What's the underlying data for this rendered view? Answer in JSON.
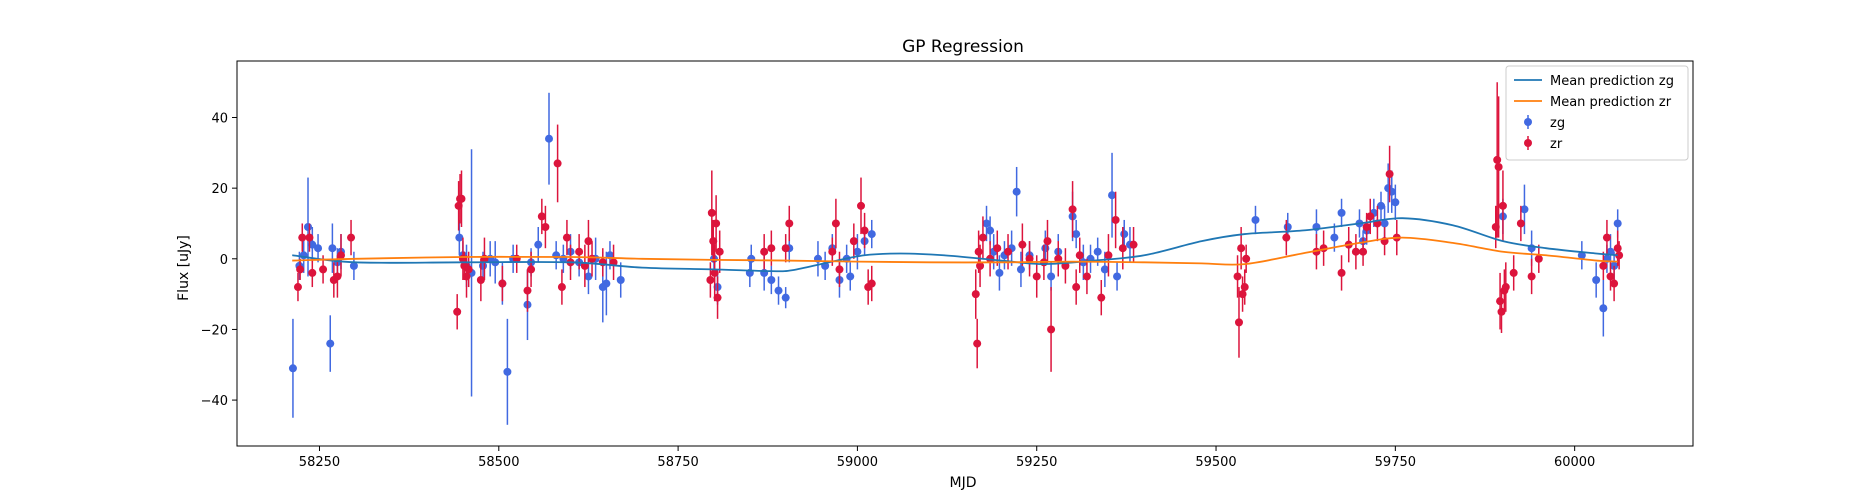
{
  "chart_data": {
    "type": "scatter",
    "title": "GP Regression",
    "xlabel": "MJD",
    "ylabel": "Flux [uJy]",
    "xlim": [
      58135,
      60165
    ],
    "ylim": [
      -53,
      56
    ],
    "xticks": [
      58250,
      58500,
      58750,
      59000,
      59250,
      59500,
      59750,
      60000
    ],
    "yticks": [
      -40,
      -20,
      0,
      20,
      40
    ],
    "grid": false,
    "legend_position": "top-right",
    "colors": {
      "mean_zg": "#1f77b4",
      "mean_zr": "#ff7f0e",
      "zg": "#4169e1",
      "zr": "#dc143c"
    },
    "legend": [
      {
        "label": "Mean prediction zg",
        "kind": "line",
        "color": "#1f77b4"
      },
      {
        "label": "Mean prediction zr",
        "kind": "line",
        "color": "#ff7f0e"
      },
      {
        "label": "zg",
        "kind": "errorbar",
        "color": "#4169e1"
      },
      {
        "label": "zr",
        "kind": "errorbar",
        "color": "#dc143c"
      }
    ],
    "lines": [
      {
        "name": "Mean prediction zg",
        "x": [
          58212,
          58300,
          58450,
          58600,
          58700,
          58800,
          58880,
          58910,
          58960,
          59010,
          59060,
          59120,
          59200,
          59260,
          59330,
          59400,
          59480,
          59540,
          59620,
          59700,
          59760,
          59830,
          59900,
          59960,
          60030,
          60060
        ],
        "y": [
          1,
          -1,
          -1,
          -1,
          -2.5,
          -3,
          -3.5,
          -3.2,
          -1,
          1,
          1.5,
          1,
          -0.5,
          -1.5,
          -0.5,
          1,
          5,
          7,
          8,
          10,
          11.5,
          9.5,
          5,
          3,
          1.5,
          1
        ]
      },
      {
        "name": "Mean prediction zr",
        "x": [
          58212,
          58300,
          58450,
          58600,
          58700,
          58800,
          58900,
          59000,
          59100,
          59200,
          59300,
          59400,
          59480,
          59540,
          59620,
          59700,
          59760,
          59830,
          59900,
          59960,
          60030,
          60060
        ],
        "y": [
          -0.5,
          0,
          0.5,
          0.5,
          0,
          -0.3,
          -0.5,
          -0.8,
          -1,
          -1,
          -0.8,
          -1,
          -1.3,
          -1.5,
          1.5,
          4.5,
          6,
          4.5,
          2,
          1,
          -0.5,
          -0.8
        ]
      }
    ],
    "series": [
      {
        "name": "zg",
        "points": [
          [
            58213,
            -31,
            14
          ],
          [
            58222,
            -2,
            4
          ],
          [
            58228,
            1,
            5
          ],
          [
            58234,
            9,
            14
          ],
          [
            58240,
            4,
            5
          ],
          [
            58248,
            3,
            4
          ],
          [
            58265,
            -24,
            8
          ],
          [
            58268,
            3,
            7
          ],
          [
            58275,
            -1,
            4
          ],
          [
            58280,
            2,
            5
          ],
          [
            58298,
            -2,
            4
          ],
          [
            58445,
            6,
            5
          ],
          [
            58450,
            1,
            4
          ],
          [
            58455,
            -2,
            6
          ],
          [
            58462,
            -4,
            35
          ],
          [
            58478,
            -2,
            4
          ],
          [
            58488,
            0,
            5
          ],
          [
            58495,
            -1,
            6
          ],
          [
            58505,
            -7,
            6
          ],
          [
            58512,
            -32,
            15
          ],
          [
            58520,
            0,
            4
          ],
          [
            58540,
            -13,
            10
          ],
          [
            58545,
            -1,
            4
          ],
          [
            58555,
            4,
            5
          ],
          [
            58570,
            34,
            13
          ],
          [
            58580,
            1,
            4
          ],
          [
            58590,
            0,
            4
          ],
          [
            58600,
            2,
            5
          ],
          [
            58612,
            -1,
            4
          ],
          [
            58625,
            -5,
            5
          ],
          [
            58635,
            0,
            6
          ],
          [
            58645,
            -8,
            10
          ],
          [
            58650,
            -7,
            9
          ],
          [
            58655,
            1,
            4
          ],
          [
            58670,
            -6,
            5
          ],
          [
            58800,
            0,
            4
          ],
          [
            58805,
            -8,
            5
          ],
          [
            58850,
            -4,
            4
          ],
          [
            58852,
            0,
            4
          ],
          [
            58870,
            -4,
            5
          ],
          [
            58880,
            -6,
            4
          ],
          [
            58890,
            -9,
            4
          ],
          [
            58900,
            -11,
            3
          ],
          [
            58905,
            3,
            4
          ],
          [
            58945,
            0,
            5
          ],
          [
            58955,
            -2,
            4
          ],
          [
            58965,
            3,
            4
          ],
          [
            58975,
            -6,
            5
          ],
          [
            58985,
            0,
            4
          ],
          [
            58990,
            -5,
            4
          ],
          [
            59000,
            2,
            5
          ],
          [
            59010,
            5,
            4
          ],
          [
            59020,
            7,
            4
          ],
          [
            59180,
            10,
            5
          ],
          [
            59185,
            8,
            4
          ],
          [
            59190,
            2,
            5
          ],
          [
            59198,
            -4,
            5
          ],
          [
            59205,
            1,
            4
          ],
          [
            59215,
            3,
            5
          ],
          [
            59222,
            19,
            7
          ],
          [
            59228,
            -3,
            5
          ],
          [
            59240,
            1,
            4
          ],
          [
            59262,
            3,
            5
          ],
          [
            59270,
            -5,
            4
          ],
          [
            59280,
            2,
            5
          ],
          [
            59300,
            12,
            7
          ],
          [
            59305,
            7,
            4
          ],
          [
            59315,
            -1,
            5
          ],
          [
            59325,
            0,
            4
          ],
          [
            59335,
            2,
            4
          ],
          [
            59345,
            -3,
            5
          ],
          [
            59355,
            18,
            12
          ],
          [
            59362,
            -5,
            4
          ],
          [
            59372,
            7,
            4
          ],
          [
            59380,
            4,
            5
          ],
          [
            59555,
            11,
            4
          ],
          [
            59600,
            9,
            4
          ],
          [
            59640,
            9,
            5
          ],
          [
            59665,
            6,
            4
          ],
          [
            59675,
            13,
            4
          ],
          [
            59700,
            10,
            4
          ],
          [
            59705,
            5,
            3
          ],
          [
            59710,
            8,
            4
          ],
          [
            59720,
            13,
            4
          ],
          [
            59730,
            15,
            4
          ],
          [
            59735,
            10,
            5
          ],
          [
            59740,
            20,
            7
          ],
          [
            59745,
            19,
            6
          ],
          [
            59750,
            16,
            5
          ],
          [
            59900,
            12,
            5
          ],
          [
            59930,
            14,
            7
          ],
          [
            59940,
            3,
            5
          ],
          [
            60010,
            1,
            4
          ],
          [
            60030,
            -6,
            5
          ],
          [
            60040,
            -14,
            8
          ],
          [
            60045,
            0,
            4
          ],
          [
            60050,
            2,
            5
          ],
          [
            60055,
            -2,
            4
          ],
          [
            60060,
            10,
            4
          ]
        ]
      },
      {
        "name": "zr",
        "points": [
          [
            58220,
            -8,
            4
          ],
          [
            58223,
            -3,
            3
          ],
          [
            58226,
            6,
            4
          ],
          [
            58236,
            6,
            4
          ],
          [
            58240,
            -4,
            4
          ],
          [
            58255,
            -3,
            4
          ],
          [
            58270,
            -6,
            5
          ],
          [
            58275,
            -5,
            6
          ],
          [
            58280,
            1,
            6
          ],
          [
            58294,
            6,
            5
          ],
          [
            58442,
            -15,
            5
          ],
          [
            58444,
            15,
            7
          ],
          [
            58446,
            17,
            7
          ],
          [
            58448,
            17,
            8
          ],
          [
            58450,
            0,
            6
          ],
          [
            58452,
            -2,
            4
          ],
          [
            58455,
            -5,
            6
          ],
          [
            58458,
            -3,
            5
          ],
          [
            58475,
            -6,
            6
          ],
          [
            58480,
            0,
            6
          ],
          [
            58505,
            -7,
            5
          ],
          [
            58525,
            0,
            4
          ],
          [
            58540,
            -9,
            6
          ],
          [
            58545,
            -3,
            5
          ],
          [
            58560,
            12,
            5
          ],
          [
            58565,
            9,
            6
          ],
          [
            58582,
            27,
            11
          ],
          [
            58588,
            -8,
            5
          ],
          [
            58595,
            6,
            5
          ],
          [
            58600,
            -1,
            5
          ],
          [
            58612,
            2,
            5
          ],
          [
            58620,
            -2,
            6
          ],
          [
            58625,
            5,
            6
          ],
          [
            58630,
            0,
            5
          ],
          [
            58645,
            -1,
            4
          ],
          [
            58660,
            -1,
            5
          ],
          [
            58795,
            -6,
            5
          ],
          [
            58797,
            13,
            12
          ],
          [
            58799,
            5,
            6
          ],
          [
            58801,
            -4,
            8
          ],
          [
            58803,
            10,
            8
          ],
          [
            58805,
            -11,
            6
          ],
          [
            58808,
            2,
            6
          ],
          [
            58870,
            2,
            5
          ],
          [
            58880,
            3,
            5
          ],
          [
            58900,
            3,
            4
          ],
          [
            58905,
            10,
            5
          ],
          [
            58965,
            2,
            4
          ],
          [
            58970,
            10,
            7
          ],
          [
            58975,
            -3,
            5
          ],
          [
            58995,
            5,
            5
          ],
          [
            59005,
            15,
            8
          ],
          [
            59010,
            8,
            5
          ],
          [
            59015,
            -8,
            5
          ],
          [
            59020,
            -7,
            5
          ],
          [
            59165,
            -10,
            7
          ],
          [
            59167,
            -24,
            7
          ],
          [
            59169,
            2,
            6
          ],
          [
            59171,
            -2,
            6
          ],
          [
            59175,
            6,
            6
          ],
          [
            59185,
            0,
            5
          ],
          [
            59195,
            3,
            5
          ],
          [
            59210,
            2,
            5
          ],
          [
            59230,
            4,
            6
          ],
          [
            59240,
            0,
            5
          ],
          [
            59250,
            -5,
            6
          ],
          [
            59260,
            -1,
            5
          ],
          [
            59265,
            5,
            6
          ],
          [
            59270,
            -20,
            12
          ],
          [
            59280,
            0,
            5
          ],
          [
            59290,
            -2,
            5
          ],
          [
            59300,
            14,
            8
          ],
          [
            59305,
            -8,
            5
          ],
          [
            59310,
            1,
            5
          ],
          [
            59320,
            -5,
            5
          ],
          [
            59340,
            -11,
            5
          ],
          [
            59350,
            1,
            6
          ],
          [
            59360,
            11,
            8
          ],
          [
            59370,
            3,
            6
          ],
          [
            59385,
            4,
            5
          ],
          [
            59530,
            -5,
            6
          ],
          [
            59532,
            -18,
            10
          ],
          [
            59535,
            3,
            6
          ],
          [
            59537,
            -10,
            5
          ],
          [
            59540,
            -8,
            5
          ],
          [
            59542,
            0,
            4
          ],
          [
            59598,
            6,
            5
          ],
          [
            59640,
            2,
            5
          ],
          [
            59650,
            3,
            5
          ],
          [
            59675,
            -4,
            5
          ],
          [
            59685,
            4,
            5
          ],
          [
            59695,
            2,
            5
          ],
          [
            59705,
            2,
            4
          ],
          [
            59710,
            9,
            4
          ],
          [
            59715,
            12,
            5
          ],
          [
            59725,
            10,
            5
          ],
          [
            59735,
            5,
            4
          ],
          [
            59742,
            24,
            8
          ],
          [
            59752,
            6,
            5
          ],
          [
            59890,
            9,
            6
          ],
          [
            59892,
            28,
            22
          ],
          [
            59894,
            26,
            20
          ],
          [
            59896,
            -12,
            8
          ],
          [
            59898,
            -15,
            6
          ],
          [
            59900,
            15,
            10
          ],
          [
            59902,
            -9,
            6
          ],
          [
            59904,
            -8,
            7
          ],
          [
            59915,
            -4,
            5
          ],
          [
            59925,
            10,
            5
          ],
          [
            59940,
            -5,
            5
          ],
          [
            59950,
            0,
            4
          ],
          [
            60040,
            -2,
            4
          ],
          [
            60045,
            6,
            5
          ],
          [
            60050,
            -5,
            4
          ],
          [
            60055,
            -7,
            5
          ],
          [
            60060,
            3,
            5
          ],
          [
            60062,
            1,
            4
          ]
        ]
      }
    ]
  }
}
